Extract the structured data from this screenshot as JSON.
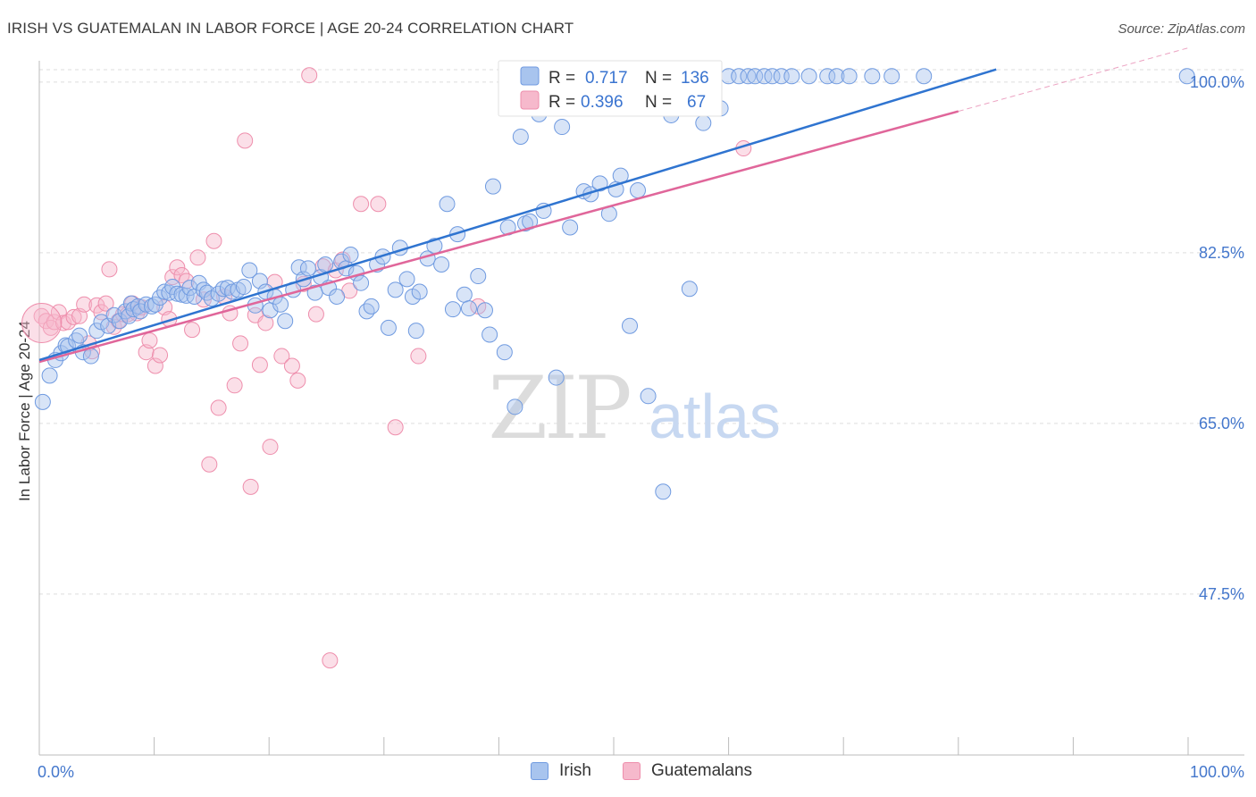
{
  "title": "IRISH VS GUATEMALAN IN LABOR FORCE | AGE 20-24 CORRELATION CHART",
  "source": "Source: ZipAtlas.com",
  "watermark": {
    "zip": "ZIP",
    "atlas": "atlas"
  },
  "colors": {
    "irish_fill": "#a8c4ee",
    "irish_stroke": "#6f9ae0",
    "irish_line": "#2f74d0",
    "guat_fill": "#f6b9cc",
    "guat_stroke": "#ee8eac",
    "guat_line": "#e0669a",
    "tick_label": "#4477cc",
    "grid": "#dddddd"
  },
  "legend": {
    "irish": {
      "r_label": "R =",
      "r_value": "0.717",
      "n_label": "N =",
      "n_value": "136"
    },
    "guat": {
      "r_label": "R =",
      "r_value": "0.396",
      "n_label": "N =",
      "n_value": "67"
    }
  },
  "bottom_legend": {
    "irish": "Irish",
    "guat": "Guatemalans"
  },
  "chart_data": {
    "type": "scatter",
    "xlabel": "",
    "ylabel": "In Labor Force | Age 20-24",
    "xlim": [
      0,
      100
    ],
    "ylim": [
      31.0,
      102.0
    ],
    "x_tick_labels": [
      "0.0%",
      "100.0%"
    ],
    "y_ticks": [
      47.5,
      65.0,
      82.5,
      100.0
    ],
    "y_tick_labels": [
      "47.5%",
      "65.0%",
      "82.5%",
      "100.0%"
    ],
    "grid": true,
    "series": [
      {
        "name": "Irish",
        "trend": {
          "x": [
            0,
            83.3
          ],
          "y": [
            71.5,
            101.3
          ]
        },
        "points": [
          [
            0.3,
            67.2
          ],
          [
            0.9,
            69.9
          ],
          [
            1.4,
            71.5
          ],
          [
            1.9,
            72.2
          ],
          [
            2.3,
            73.0
          ],
          [
            2.5,
            72.9
          ],
          [
            3.2,
            73.5
          ],
          [
            3.5,
            74.0
          ],
          [
            3.8,
            72.3
          ],
          [
            4.5,
            71.9
          ],
          [
            5.0,
            74.5
          ],
          [
            5.4,
            75.4
          ],
          [
            6.0,
            75.0
          ],
          [
            6.5,
            76.1
          ],
          [
            7.0,
            75.5
          ],
          [
            7.5,
            76.5
          ],
          [
            7.8,
            76.0
          ],
          [
            8.0,
            77.3
          ],
          [
            8.2,
            76.7
          ],
          [
            8.6,
            77.0
          ],
          [
            8.8,
            76.5
          ],
          [
            9.3,
            77.2
          ],
          [
            9.8,
            77.0
          ],
          [
            10.1,
            77.2
          ],
          [
            10.5,
            77.9
          ],
          [
            10.9,
            78.5
          ],
          [
            11.3,
            78.4
          ],
          [
            11.6,
            79.0
          ],
          [
            12.0,
            78.3
          ],
          [
            12.4,
            78.2
          ],
          [
            12.8,
            78.1
          ],
          [
            13.1,
            78.9
          ],
          [
            13.5,
            78.0
          ],
          [
            13.9,
            79.4
          ],
          [
            14.3,
            78.7
          ],
          [
            14.6,
            78.4
          ],
          [
            15.0,
            77.8
          ],
          [
            15.6,
            78.3
          ],
          [
            16.0,
            78.8
          ],
          [
            16.4,
            78.9
          ],
          [
            16.8,
            78.5
          ],
          [
            17.3,
            78.7
          ],
          [
            17.8,
            79.0
          ],
          [
            18.3,
            80.7
          ],
          [
            18.8,
            77.1
          ],
          [
            19.2,
            79.6
          ],
          [
            19.7,
            78.5
          ],
          [
            20.1,
            76.6
          ],
          [
            20.5,
            78.0
          ],
          [
            21.0,
            77.2
          ],
          [
            21.4,
            75.5
          ],
          [
            22.1,
            78.7
          ],
          [
            22.6,
            81.0
          ],
          [
            23.0,
            79.8
          ],
          [
            23.4,
            80.9
          ],
          [
            24.0,
            78.4
          ],
          [
            24.5,
            80.0
          ],
          [
            24.9,
            81.3
          ],
          [
            25.2,
            78.9
          ],
          [
            25.9,
            78.0
          ],
          [
            26.3,
            81.6
          ],
          [
            26.7,
            80.9
          ],
          [
            27.1,
            82.3
          ],
          [
            27.6,
            80.4
          ],
          [
            28.0,
            79.4
          ],
          [
            28.5,
            76.5
          ],
          [
            28.9,
            77.0
          ],
          [
            29.4,
            81.3
          ],
          [
            29.9,
            82.1
          ],
          [
            30.4,
            74.8
          ],
          [
            31.0,
            78.7
          ],
          [
            31.4,
            83.0
          ],
          [
            32.0,
            79.8
          ],
          [
            32.5,
            78.0
          ],
          [
            32.8,
            74.5
          ],
          [
            33.1,
            78.5
          ],
          [
            33.8,
            81.9
          ],
          [
            34.4,
            83.2
          ],
          [
            35.0,
            81.3
          ],
          [
            35.5,
            87.5
          ],
          [
            36.0,
            76.7
          ],
          [
            36.4,
            84.4
          ],
          [
            37.0,
            78.2
          ],
          [
            37.4,
            76.8
          ],
          [
            38.2,
            80.1
          ],
          [
            38.8,
            76.6
          ],
          [
            39.2,
            74.1
          ],
          [
            39.5,
            89.3
          ],
          [
            40.5,
            72.3
          ],
          [
            40.8,
            85.1
          ],
          [
            41.4,
            66.7
          ],
          [
            41.9,
            94.4
          ],
          [
            42.3,
            85.5
          ],
          [
            42.7,
            85.7
          ],
          [
            43.5,
            96.7
          ],
          [
            43.9,
            86.8
          ],
          [
            44.5,
            97.4
          ],
          [
            45.0,
            69.7
          ],
          [
            45.5,
            95.4
          ],
          [
            46.2,
            85.1
          ],
          [
            46.8,
            97.5
          ],
          [
            47.4,
            88.8
          ],
          [
            48.0,
            88.5
          ],
          [
            48.8,
            89.6
          ],
          [
            49.6,
            86.5
          ],
          [
            50.2,
            89.0
          ],
          [
            50.6,
            90.4
          ],
          [
            51.4,
            75.0
          ],
          [
            52.1,
            88.9
          ],
          [
            53.0,
            67.8
          ],
          [
            54.3,
            58.0
          ],
          [
            55.0,
            96.6
          ],
          [
            55.4,
            98.8
          ],
          [
            56.0,
            98.6
          ],
          [
            56.6,
            78.8
          ],
          [
            57.2,
            97.7
          ],
          [
            57.8,
            95.8
          ],
          [
            58.5,
            98.7
          ],
          [
            59.3,
            97.3
          ],
          [
            60.0,
            100.6
          ],
          [
            60.9,
            100.6
          ],
          [
            61.7,
            100.6
          ],
          [
            62.3,
            100.6
          ],
          [
            63.1,
            100.6
          ],
          [
            63.8,
            100.6
          ],
          [
            64.6,
            100.6
          ],
          [
            65.5,
            100.6
          ],
          [
            67.0,
            100.6
          ],
          [
            68.6,
            100.6
          ],
          [
            69.4,
            100.6
          ],
          [
            70.5,
            100.6
          ],
          [
            72.5,
            100.6
          ],
          [
            74.2,
            100.6
          ],
          [
            77.0,
            100.6
          ],
          [
            99.9,
            100.6
          ]
        ]
      },
      {
        "name": "Guatemalans",
        "trend": {
          "x": [
            0,
            80.0
          ],
          "y": [
            71.3,
            97.0
          ]
        },
        "trend_ext": {
          "x": [
            80.0,
            100.0
          ],
          "y": [
            97.0,
            103.5
          ]
        },
        "points": [
          [
            0.2,
            76.0
          ],
          [
            0.6,
            75.5
          ],
          [
            1.0,
            74.8
          ],
          [
            1.3,
            75.4
          ],
          [
            1.7,
            76.4
          ],
          [
            2.1,
            75.3
          ],
          [
            2.5,
            75.4
          ],
          [
            3.0,
            75.9
          ],
          [
            3.5,
            76.0
          ],
          [
            3.9,
            77.2
          ],
          [
            4.3,
            73.2
          ],
          [
            4.6,
            72.4
          ],
          [
            5.0,
            77.1
          ],
          [
            5.4,
            76.4
          ],
          [
            5.8,
            77.3
          ],
          [
            6.1,
            80.8
          ],
          [
            6.5,
            74.9
          ],
          [
            6.9,
            75.5
          ],
          [
            7.3,
            76.2
          ],
          [
            7.7,
            76.2
          ],
          [
            8.1,
            77.3
          ],
          [
            8.5,
            76.3
          ],
          [
            8.9,
            76.9
          ],
          [
            9.3,
            72.3
          ],
          [
            9.6,
            73.5
          ],
          [
            10.1,
            70.9
          ],
          [
            10.5,
            72.0
          ],
          [
            10.9,
            76.9
          ],
          [
            11.3,
            75.7
          ],
          [
            11.6,
            80.0
          ],
          [
            12.0,
            81.0
          ],
          [
            12.4,
            80.2
          ],
          [
            12.8,
            79.6
          ],
          [
            13.3,
            74.6
          ],
          [
            13.8,
            82.0
          ],
          [
            14.3,
            77.7
          ],
          [
            14.8,
            60.8
          ],
          [
            15.2,
            83.7
          ],
          [
            15.6,
            66.6
          ],
          [
            16.1,
            78.0
          ],
          [
            16.6,
            76.3
          ],
          [
            17.0,
            68.9
          ],
          [
            17.5,
            73.2
          ],
          [
            17.9,
            94.0
          ],
          [
            18.4,
            58.5
          ],
          [
            18.8,
            76.1
          ],
          [
            19.2,
            71.0
          ],
          [
            19.7,
            75.3
          ],
          [
            20.1,
            62.6
          ],
          [
            20.5,
            79.5
          ],
          [
            21.1,
            71.9
          ],
          [
            22.0,
            70.9
          ],
          [
            22.5,
            69.4
          ],
          [
            23.0,
            79.3
          ],
          [
            23.5,
            100.7
          ],
          [
            24.1,
            76.2
          ],
          [
            24.7,
            81.1
          ],
          [
            25.3,
            40.7
          ],
          [
            25.8,
            80.7
          ],
          [
            26.4,
            81.8
          ],
          [
            27.0,
            78.6
          ],
          [
            28.0,
            87.5
          ],
          [
            29.5,
            87.5
          ],
          [
            31.0,
            64.6
          ],
          [
            33.0,
            71.9
          ],
          [
            38.2,
            77.0
          ],
          [
            61.3,
            93.2
          ]
        ]
      }
    ]
  }
}
